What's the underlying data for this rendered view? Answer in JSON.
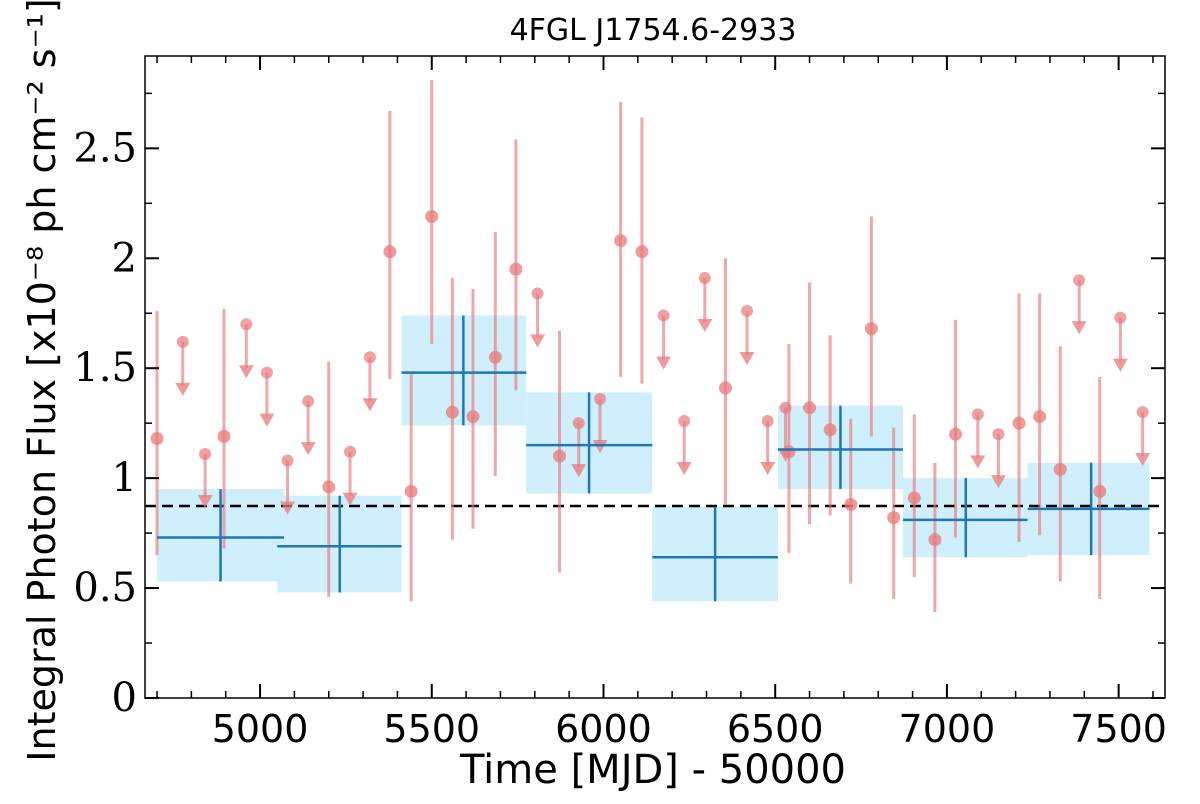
{
  "chart_data": {
    "type": "scatter",
    "title": "4FGL J1754.6-2933",
    "xlabel": "Time [MJD] - 50000",
    "ylabel": "Integral Photon Flux [x10⁻⁸ ph cm⁻² s⁻¹]",
    "xlim": [
      4665,
      7635
    ],
    "ylim": [
      0,
      2.92
    ],
    "xticks": [
      5000,
      5500,
      6000,
      6500,
      7000,
      7500
    ],
    "xtick_labels": [
      "5000",
      "5500",
      "6000",
      "6500",
      "7000",
      "7500"
    ],
    "yticks": [
      0,
      0.5,
      1,
      1.5,
      2,
      2.5
    ],
    "ytick_labels": [
      "0",
      "0.5",
      "1",
      "1.5",
      "2",
      "2.5"
    ],
    "grid": false,
    "legend": "none",
    "reference_line": {
      "y": 0.873,
      "style": "dashed",
      "color": "#000000"
    },
    "colors": {
      "short_bins": "#e8787a",
      "long_bins": "#1f77b4",
      "long_band": "#cdeefc"
    },
    "series": [
      {
        "kind": "detections",
        "points": [
          {
            "x": 4700,
            "y": 1.18,
            "ylo": 0.65,
            "yhi": 1.76
          },
          {
            "x": 4895,
            "y": 1.19,
            "ylo": 0.68,
            "yhi": 1.77
          },
          {
            "x": 5200,
            "y": 0.96,
            "ylo": 0.46,
            "yhi": 1.53
          },
          {
            "x": 5378,
            "y": 2.03,
            "ylo": 1.45,
            "yhi": 2.67
          },
          {
            "x": 5440,
            "y": 0.94,
            "ylo": 0.44,
            "yhi": 1.48
          },
          {
            "x": 5500,
            "y": 2.19,
            "ylo": 1.61,
            "yhi": 2.81
          },
          {
            "x": 5560,
            "y": 1.3,
            "ylo": 0.72,
            "yhi": 1.91
          },
          {
            "x": 5620,
            "y": 1.28,
            "ylo": 0.77,
            "yhi": 1.86
          },
          {
            "x": 5685,
            "y": 1.55,
            "ylo": 1.01,
            "yhi": 2.12
          },
          {
            "x": 5745,
            "y": 1.95,
            "ylo": 1.4,
            "yhi": 2.54
          },
          {
            "x": 5872,
            "y": 1.1,
            "ylo": 0.57,
            "yhi": 1.67
          },
          {
            "x": 6050,
            "y": 2.08,
            "ylo": 1.46,
            "yhi": 2.71
          },
          {
            "x": 6112,
            "y": 2.03,
            "ylo": 1.43,
            "yhi": 2.64
          },
          {
            "x": 6355,
            "y": 1.41,
            "ylo": 0.88,
            "yhi": 2.0
          },
          {
            "x": 6540,
            "y": 1.12,
            "ylo": 0.66,
            "yhi": 1.61
          },
          {
            "x": 6600,
            "y": 1.32,
            "ylo": 0.79,
            "yhi": 1.89
          },
          {
            "x": 6660,
            "y": 1.22,
            "ylo": 0.83,
            "yhi": 1.65
          },
          {
            "x": 6720,
            "y": 0.88,
            "ylo": 0.52,
            "yhi": 1.27
          },
          {
            "x": 6780,
            "y": 1.68,
            "ylo": 1.19,
            "yhi": 2.19
          },
          {
            "x": 6845,
            "y": 0.82,
            "ylo": 0.45,
            "yhi": 1.23
          },
          {
            "x": 6905,
            "y": 0.91,
            "ylo": 0.55,
            "yhi": 1.29
          },
          {
            "x": 6965,
            "y": 0.72,
            "ylo": 0.39,
            "yhi": 1.07
          },
          {
            "x": 7025,
            "y": 1.2,
            "ylo": 0.73,
            "yhi": 1.72
          },
          {
            "x": 7210,
            "y": 1.25,
            "ylo": 0.71,
            "yhi": 1.84
          },
          {
            "x": 7270,
            "y": 1.28,
            "ylo": 0.74,
            "yhi": 1.84
          },
          {
            "x": 7330,
            "y": 1.04,
            "ylo": 0.53,
            "yhi": 1.6
          },
          {
            "x": 7445,
            "y": 0.94,
            "ylo": 0.45,
            "yhi": 1.46
          }
        ]
      },
      {
        "kind": "upper_limits",
        "points": [
          {
            "x": 4775,
            "y": 1.62
          },
          {
            "x": 4840,
            "y": 1.11
          },
          {
            "x": 4960,
            "y": 1.7
          },
          {
            "x": 5020,
            "y": 1.48
          },
          {
            "x": 5080,
            "y": 1.08
          },
          {
            "x": 5140,
            "y": 1.35
          },
          {
            "x": 5262,
            "y": 1.12
          },
          {
            "x": 5320,
            "y": 1.55
          },
          {
            "x": 5808,
            "y": 1.84
          },
          {
            "x": 5928,
            "y": 1.25
          },
          {
            "x": 5990,
            "y": 1.36
          },
          {
            "x": 6175,
            "y": 1.74
          },
          {
            "x": 6235,
            "y": 1.26
          },
          {
            "x": 6295,
            "y": 1.91
          },
          {
            "x": 6418,
            "y": 1.76
          },
          {
            "x": 6478,
            "y": 1.26
          },
          {
            "x": 6530,
            "y": 1.32
          },
          {
            "x": 7090,
            "y": 1.29
          },
          {
            "x": 7150,
            "y": 1.2
          },
          {
            "x": 7385,
            "y": 1.9
          },
          {
            "x": 7505,
            "y": 1.73
          },
          {
            "x": 7570,
            "y": 1.3
          }
        ]
      },
      {
        "kind": "long_bins",
        "points": [
          {
            "x": 4885,
            "xlo": 4700,
            "xhi": 5070,
            "y": 0.73,
            "ylo": 0.53,
            "yhi": 0.95
          },
          {
            "x": 5232,
            "xlo": 5050,
            "xhi": 5412,
            "y": 0.69,
            "ylo": 0.48,
            "yhi": 0.92
          },
          {
            "x": 5592,
            "xlo": 5412,
            "xhi": 5775,
            "y": 1.48,
            "ylo": 1.24,
            "yhi": 1.74
          },
          {
            "x": 5958,
            "xlo": 5775,
            "xhi": 6142,
            "y": 1.15,
            "ylo": 0.93,
            "yhi": 1.39
          },
          {
            "x": 6325,
            "xlo": 6142,
            "xhi": 6508,
            "y": 0.64,
            "ylo": 0.44,
            "yhi": 0.87
          },
          {
            "x": 6690,
            "xlo": 6508,
            "xhi": 6872,
            "y": 1.13,
            "ylo": 0.95,
            "yhi": 1.33
          },
          {
            "x": 7055,
            "xlo": 6872,
            "xhi": 7235,
            "y": 0.81,
            "ylo": 0.64,
            "yhi": 1.0
          },
          {
            "x": 7420,
            "xlo": 7235,
            "xhi": 7590,
            "y": 0.86,
            "ylo": 0.65,
            "yhi": 1.07
          }
        ]
      }
    ]
  }
}
